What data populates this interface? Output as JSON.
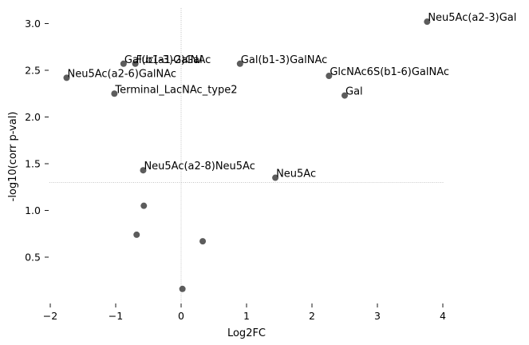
{
  "chart_data": {
    "type": "scatter",
    "title": "",
    "xlabel": "Log2FC",
    "ylabel": "-log10(corr p-val)",
    "xlim": [
      -2,
      4.1
    ],
    "ylim": [
      0.02,
      3.15
    ],
    "xticks": [
      -2,
      -1,
      0,
      1,
      2,
      3,
      4
    ],
    "yticks": [
      0.5,
      1.0,
      1.5,
      2.0,
      2.5,
      3.0
    ],
    "xtick_labels": [
      "−2",
      "−1",
      "0",
      "1",
      "2",
      "3",
      "4"
    ],
    "ytick_labels": [
      "0.5",
      "1.0",
      "1.5",
      "2.0",
      "2.5",
      "3.0"
    ],
    "grid": false,
    "reference_lines": {
      "x": 0,
      "y": 1.3
    },
    "point_color": "#5c5c5c",
    "reference_line_color": "#b0b0b0",
    "points": [
      {
        "label": "Neu5Ac(a2-3)Gal",
        "x": 3.76,
        "y": 3.02
      },
      {
        "label": "Gal(b1-3)GalNAc",
        "x": -0.88,
        "y": 2.57
      },
      {
        "label": "Fuc(a1-2)Gal",
        "x": -0.7,
        "y": 2.57
      },
      {
        "label": "Gal(b1-3)GalNAc",
        "x": 0.9,
        "y": 2.57
      },
      {
        "label": "Neu5Ac(a2-6)GalNAc",
        "x": -1.75,
        "y": 2.42
      },
      {
        "label": "GlcNAc6S(b1-6)GalNAc",
        "x": 2.26,
        "y": 2.44
      },
      {
        "label": "Terminal_LacNAc_type2",
        "x": -1.02,
        "y": 2.25
      },
      {
        "label": "Gal",
        "x": 2.5,
        "y": 2.23
      },
      {
        "label": "Neu5Ac(a2-8)Neu5Ac",
        "x": -0.58,
        "y": 1.43
      },
      {
        "label": "Neu5Ac",
        "x": 1.44,
        "y": 1.35
      },
      {
        "label": "",
        "x": -0.57,
        "y": 1.05
      },
      {
        "label": "",
        "x": -0.68,
        "y": 0.74
      },
      {
        "label": "",
        "x": 0.33,
        "y": 0.67
      },
      {
        "label": "",
        "x": 0.02,
        "y": 0.16
      }
    ]
  }
}
